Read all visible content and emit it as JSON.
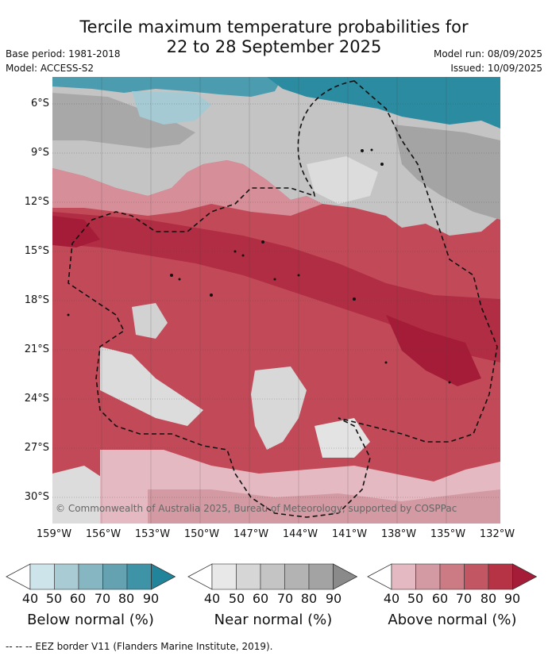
{
  "header": {
    "title_line1": "Tercile maximum temperature probabilities for",
    "title_line2": "22 to 28 September 2025",
    "base_period": "Base period: 1981-2018",
    "model": "Model: ACCESS-S2",
    "model_run": "Model run: 08/09/2025",
    "issued": "Issued: 10/09/2025"
  },
  "map": {
    "lat_labels": [
      "6°S",
      "9°S",
      "12°S",
      "15°S",
      "18°S",
      "21°S",
      "24°S",
      "27°S",
      "30°S"
    ],
    "lon_labels": [
      "159°W",
      "156°W",
      "153°W",
      "150°W",
      "147°W",
      "144°W",
      "141°W",
      "138°W",
      "135°W",
      "132°W"
    ],
    "copyright": "© Commonwealth of Australia 2025, Bureau of Meteorology, supported by COSPPac"
  },
  "legend": {
    "groups": [
      {
        "title": "Below normal (%)",
        "ticks": [
          "40",
          "50",
          "60",
          "70",
          "80",
          "90"
        ],
        "colors": [
          "#cde4ea",
          "#a8cbd4",
          "#86b6c2",
          "#65a2b1",
          "#3e94a6",
          "#22849a"
        ]
      },
      {
        "title": "Near normal (%)",
        "ticks": [
          "40",
          "50",
          "60",
          "70",
          "80",
          "90"
        ],
        "colors": [
          "#e8e8e8",
          "#d6d6d6",
          "#c4c4c4",
          "#b3b3b3",
          "#a3a3a3",
          "#8a8a8a"
        ]
      },
      {
        "title": "Above normal (%)",
        "ticks": [
          "40",
          "50",
          "60",
          "70",
          "80",
          "90"
        ],
        "colors": [
          "#e4b9c1",
          "#d49aa3",
          "#cc7a84",
          "#c35663",
          "#b63346",
          "#a51c38"
        ]
      }
    ]
  },
  "footer": "--  --  -- EEZ border V11 (Flanders Marine Institute, 2019)."
}
